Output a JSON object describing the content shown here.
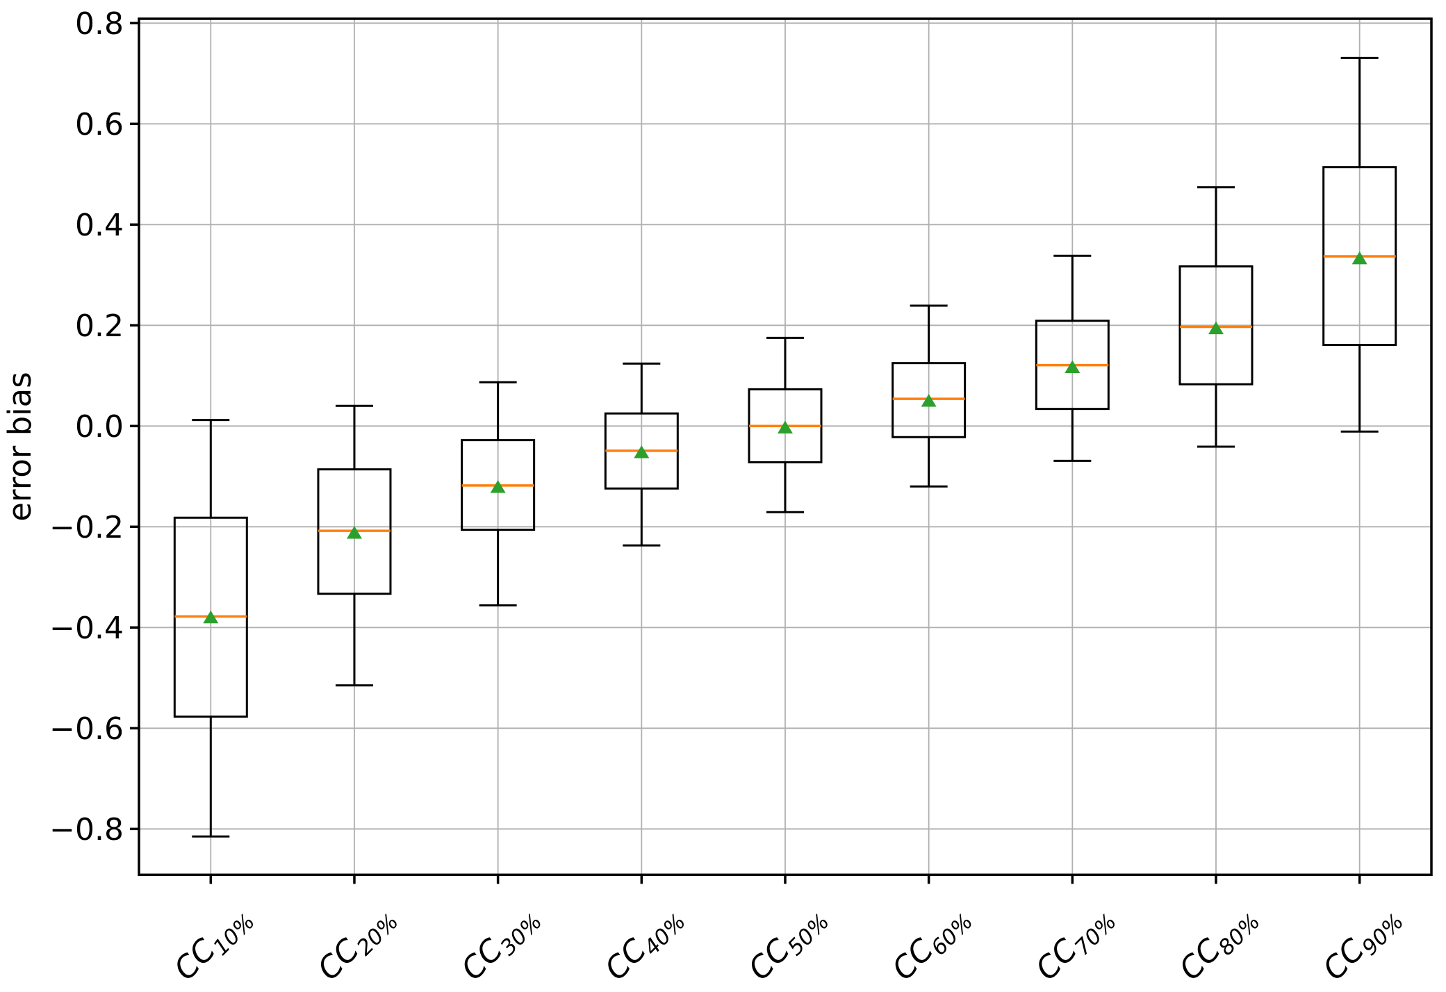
{
  "chart_data": {
    "type": "boxplot",
    "title": "",
    "xlabel": "",
    "ylabel": "error bias",
    "grid": true,
    "legend_position": "none",
    "ylim": [
      -0.892,
      0.809
    ],
    "y_ticks": [
      0.8,
      0.6,
      0.4,
      0.2,
      0.0,
      -0.2,
      -0.4,
      -0.6,
      -0.8
    ],
    "y_tick_labels": [
      "0.8",
      "0.6",
      "0.4",
      "0.2",
      "0.0",
      "−0.2",
      "−0.4",
      "−0.6",
      "−0.8"
    ],
    "categories": [
      "CC10%",
      "CC20%",
      "CC30%",
      "CC40%",
      "CC50%",
      "CC60%",
      "CC70%",
      "CC80%",
      "CC90%"
    ],
    "category_labels": [
      {
        "main": "CC",
        "sub": "10%"
      },
      {
        "main": "CC",
        "sub": "20%"
      },
      {
        "main": "CC",
        "sub": "30%"
      },
      {
        "main": "CC",
        "sub": "40%"
      },
      {
        "main": "CC",
        "sub": "50%"
      },
      {
        "main": "CC",
        "sub": "60%"
      },
      {
        "main": "CC",
        "sub": "70%"
      },
      {
        "main": "CC",
        "sub": "80%"
      },
      {
        "main": "CC",
        "sub": "90%"
      }
    ],
    "series": [
      {
        "label": "CC10%",
        "whisker_low": -0.815,
        "q1": -0.577,
        "median": -0.378,
        "mean": -0.38,
        "q3": -0.182,
        "whisker_high": 0.012
      },
      {
        "label": "CC20%",
        "whisker_low": -0.515,
        "q1": -0.333,
        "median": -0.208,
        "mean": -0.212,
        "q3": -0.086,
        "whisker_high": 0.04
      },
      {
        "label": "CC30%",
        "whisker_low": -0.356,
        "q1": -0.206,
        "median": -0.118,
        "mean": -0.121,
        "q3": -0.028,
        "whisker_high": 0.087
      },
      {
        "label": "CC40%",
        "whisker_low": -0.237,
        "q1": -0.124,
        "median": -0.049,
        "mean": -0.052,
        "q3": 0.025,
        "whisker_high": 0.124
      },
      {
        "label": "CC50%",
        "whisker_low": -0.171,
        "q1": -0.072,
        "median": 0.0,
        "mean": -0.003,
        "q3": 0.073,
        "whisker_high": 0.175
      },
      {
        "label": "CC60%",
        "whisker_low": -0.12,
        "q1": -0.022,
        "median": 0.054,
        "mean": 0.05,
        "q3": 0.125,
        "whisker_high": 0.239
      },
      {
        "label": "CC70%",
        "whisker_low": -0.069,
        "q1": 0.034,
        "median": 0.121,
        "mean": 0.117,
        "q3": 0.209,
        "whisker_high": 0.338
      },
      {
        "label": "CC80%",
        "whisker_low": -0.041,
        "q1": 0.083,
        "median": 0.197,
        "mean": 0.194,
        "q3": 0.317,
        "whisker_high": 0.474
      },
      {
        "label": "CC90%",
        "whisker_low": -0.011,
        "q1": 0.161,
        "median": 0.337,
        "mean": 0.333,
        "q3": 0.514,
        "whisker_high": 0.731
      }
    ],
    "colors": {
      "box_line": "#000000",
      "whisker_line": "#000000",
      "median_line": "#ff7f0e",
      "mean_marker": "#2ca02c",
      "grid_line": "#b0b0b0",
      "spine": "#000000",
      "background": "#ffffff"
    }
  }
}
